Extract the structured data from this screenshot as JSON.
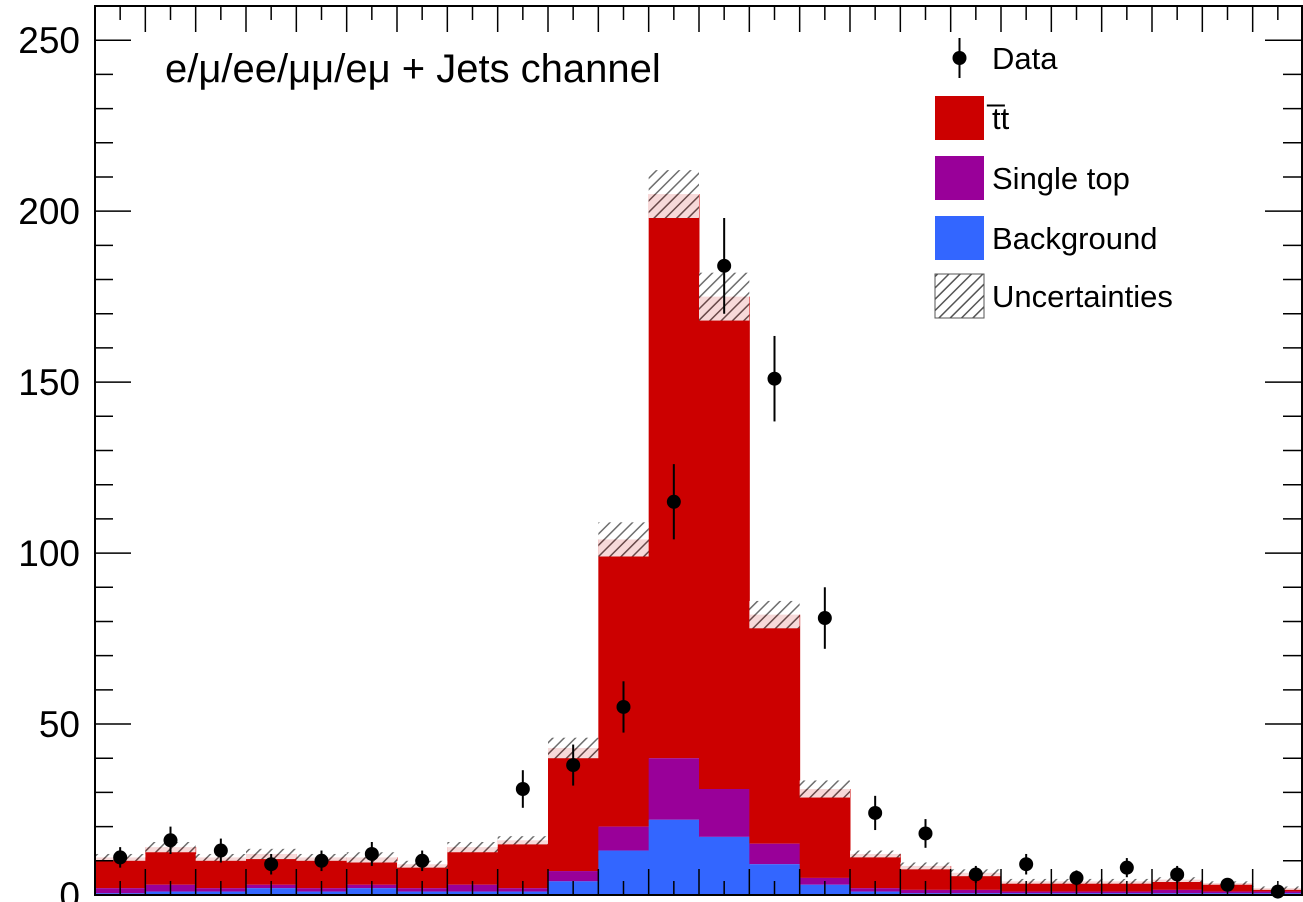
{
  "chart_data": {
    "type": "bar",
    "stacked": true,
    "title": "",
    "annotation": "e/μ/ee/μμ/eμ + Jets channel",
    "xlabel": "",
    "ylabel": "",
    "ylim": [
      0,
      260
    ],
    "yticks": [
      "0",
      "50",
      "100",
      "150",
      "200",
      "250"
    ],
    "ytick_values": [
      0,
      50,
      100,
      150,
      200,
      250
    ],
    "bins": 24,
    "legend": {
      "placement": "top-right",
      "entries": [
        "Data",
        "t̅t",
        "Single top",
        "Background",
        "Uncertainties"
      ]
    },
    "colors": {
      "ttbar": "#cc0000",
      "single_top": "#990099",
      "background": "#3366ff",
      "data": "#000000",
      "uncertainty": "#555555"
    },
    "series": [
      {
        "name": "Background",
        "values": [
          0.5,
          1,
          1,
          2,
          1,
          2,
          1,
          1,
          1,
          4,
          13,
          22,
          17,
          9,
          3,
          1,
          0.5,
          0.5,
          0.5,
          0.5,
          0.5,
          0.5,
          0.5,
          0.5
        ]
      },
      {
        "name": "Single top",
        "values": [
          1.5,
          2,
          1,
          1,
          1,
          1,
          1,
          2,
          1,
          3,
          7,
          18,
          14,
          6,
          2,
          1,
          1,
          1,
          0.5,
          0.5,
          0.5,
          1,
          0.5,
          0.5
        ]
      },
      {
        "name": "t̅t",
        "values": [
          9,
          11,
          9,
          9,
          9,
          8,
          7,
          11,
          14,
          36,
          84,
          165,
          144,
          67,
          26,
          10,
          7,
          5,
          3,
          3,
          3,
          3,
          2.5,
          1
        ]
      }
    ],
    "mc_total": [
      11,
      14,
      11,
      12,
      11,
      11,
      9,
      14,
      16,
      43,
      104,
      205,
      175,
      82,
      31,
      12,
      8.5,
      6.5,
      4,
      4,
      4,
      4.5,
      3.5,
      2
    ],
    "uncertainty": [
      1,
      1.5,
      1,
      1.5,
      1,
      1.5,
      1,
      1.5,
      1.2,
      3,
      5,
      7,
      7,
      4,
      2.5,
      1,
      1,
      1,
      0.7,
      0.7,
      0.7,
      0.7,
      0.5,
      0.5
    ],
    "data_points": {
      "name": "Data",
      "values": [
        11,
        16,
        13,
        9,
        10,
        12,
        10,
        null,
        31,
        38,
        55,
        115,
        184,
        151,
        81,
        24,
        18,
        6,
        9,
        5,
        8,
        6,
        3,
        7
      ],
      "errors": [
        3,
        4,
        3.5,
        3,
        3,
        3.5,
        3,
        null,
        5.5,
        6,
        7.5,
        11,
        14,
        12.5,
        9,
        5,
        4.2,
        2.5,
        3,
        2.2,
        2.8,
        2.5,
        1.7,
        2.6
      ],
      "last_value": 1,
      "last_error": 1
    }
  }
}
